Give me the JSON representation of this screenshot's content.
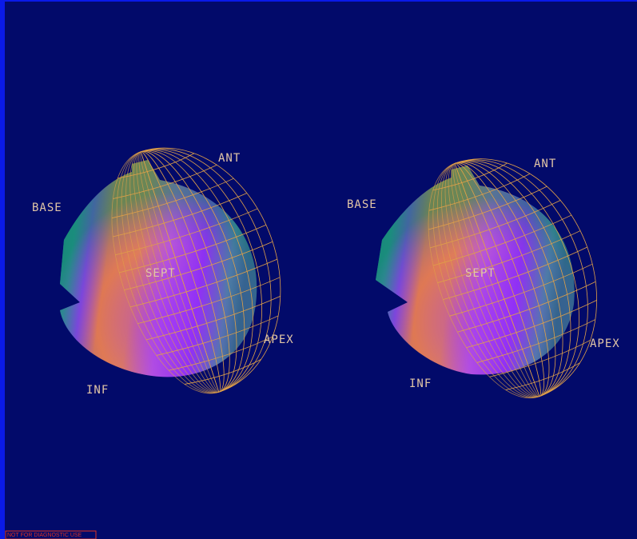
{
  "views": [
    {
      "labels": {
        "base": "BASE",
        "ant": "ANT",
        "sept": "SEPT",
        "apex": "APEX",
        "inf": "INF"
      }
    },
    {
      "labels": {
        "base": "BASE",
        "ant": "ANT",
        "sept": "SEPT",
        "apex": "APEX",
        "inf": "INF"
      }
    }
  ],
  "footer": "NOT FOR DIAGNOSTIC USE"
}
